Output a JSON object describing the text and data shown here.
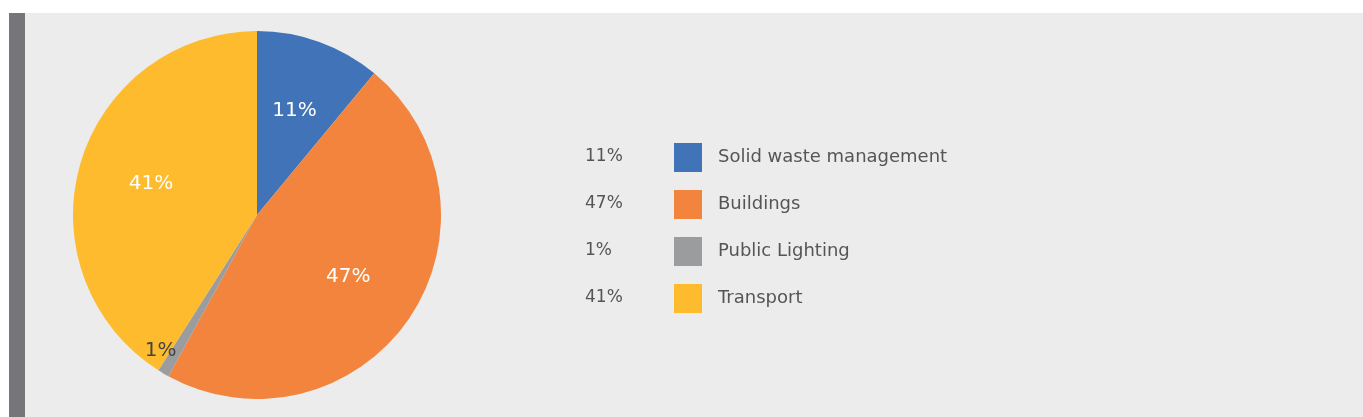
{
  "chart_data": {
    "type": "pie",
    "categories": [
      "Solid waste management",
      "Buildings",
      "Public Lighting",
      "Transport"
    ],
    "values": [
      11,
      47,
      1,
      41
    ],
    "colors": [
      "#4173b8",
      "#f3843e",
      "#9a9c9e",
      "#fdbb2d"
    ],
    "value_labels": [
      "11%",
      "47%",
      "1%",
      "41%"
    ],
    "legend": "right"
  }
}
